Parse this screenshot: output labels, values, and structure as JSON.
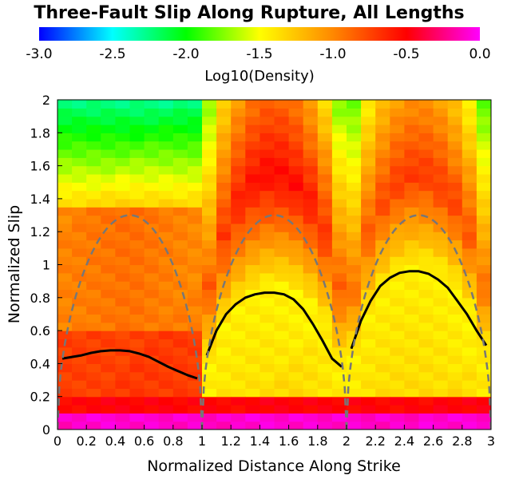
{
  "chart_data": {
    "type": "heatmap",
    "title": "Three-Fault Slip Along Rupture, All Lengths",
    "xlabel": "Normalized Distance Along Strike",
    "ylabel": "Normalized Slip",
    "xlim": [
      0,
      3
    ],
    "ylim": [
      0,
      2
    ],
    "x_ticks": [
      "0",
      "0.2",
      "0.4",
      "0.6",
      "0.8",
      "1",
      "1.2",
      "1.4",
      "1.6",
      "1.8",
      "2",
      "2.2",
      "2.4",
      "2.6",
      "2.8",
      "3"
    ],
    "y_ticks": [
      "0",
      "0.2",
      "0.4",
      "0.6",
      "0.8",
      "1",
      "1.2",
      "1.4",
      "1.6",
      "1.8",
      "2"
    ],
    "colorbar": {
      "label": "Log10(Density)",
      "range": [
        -3.0,
        0.0
      ],
      "ticks": [
        "-3.0",
        "-2.5",
        "-2.0",
        "-1.5",
        "-1.0",
        "-0.5",
        "0.0"
      ],
      "colors": [
        "#0000ff",
        "#00ffff",
        "#00ff00",
        "#ffff00",
        "#ff8800",
        "#ff0000",
        "#ff00ff"
      ]
    },
    "grid": {
      "nx": 30,
      "ny": 40
    },
    "series": [
      {
        "style": "solid-black",
        "segments": [
          {
            "x": [
              0.033,
              0.1,
              0.167,
              0.233,
              0.3,
              0.367,
              0.433,
              0.5,
              0.567,
              0.633,
              0.7,
              0.767,
              0.833,
              0.9,
              0.967
            ],
            "y": [
              0.43,
              0.44,
              0.45,
              0.465,
              0.475,
              0.48,
              0.48,
              0.475,
              0.46,
              0.44,
              0.41,
              0.38,
              0.355,
              0.33,
              0.31
            ]
          },
          {
            "x": [
              1.033,
              1.1,
              1.167,
              1.233,
              1.3,
              1.367,
              1.433,
              1.5,
              1.567,
              1.633,
              1.7,
              1.767,
              1.833,
              1.9,
              1.967
            ],
            "y": [
              0.45,
              0.6,
              0.7,
              0.76,
              0.8,
              0.82,
              0.83,
              0.83,
              0.82,
              0.79,
              0.73,
              0.64,
              0.54,
              0.43,
              0.38
            ]
          },
          {
            "x": [
              2.033,
              2.1,
              2.167,
              2.233,
              2.3,
              2.367,
              2.433,
              2.5,
              2.567,
              2.633,
              2.7,
              2.767,
              2.833,
              2.9,
              2.967
            ],
            "y": [
              0.49,
              0.66,
              0.78,
              0.87,
              0.92,
              0.95,
              0.96,
              0.96,
              0.945,
              0.91,
              0.86,
              0.78,
              0.7,
              0.6,
              0.51
            ]
          }
        ]
      },
      {
        "style": "dashed-gray",
        "shape": "sqrt-sin",
        "peak": 1.3,
        "segments": [
          [
            0,
            1
          ],
          [
            1,
            2
          ],
          [
            2,
            3
          ]
        ]
      }
    ]
  }
}
